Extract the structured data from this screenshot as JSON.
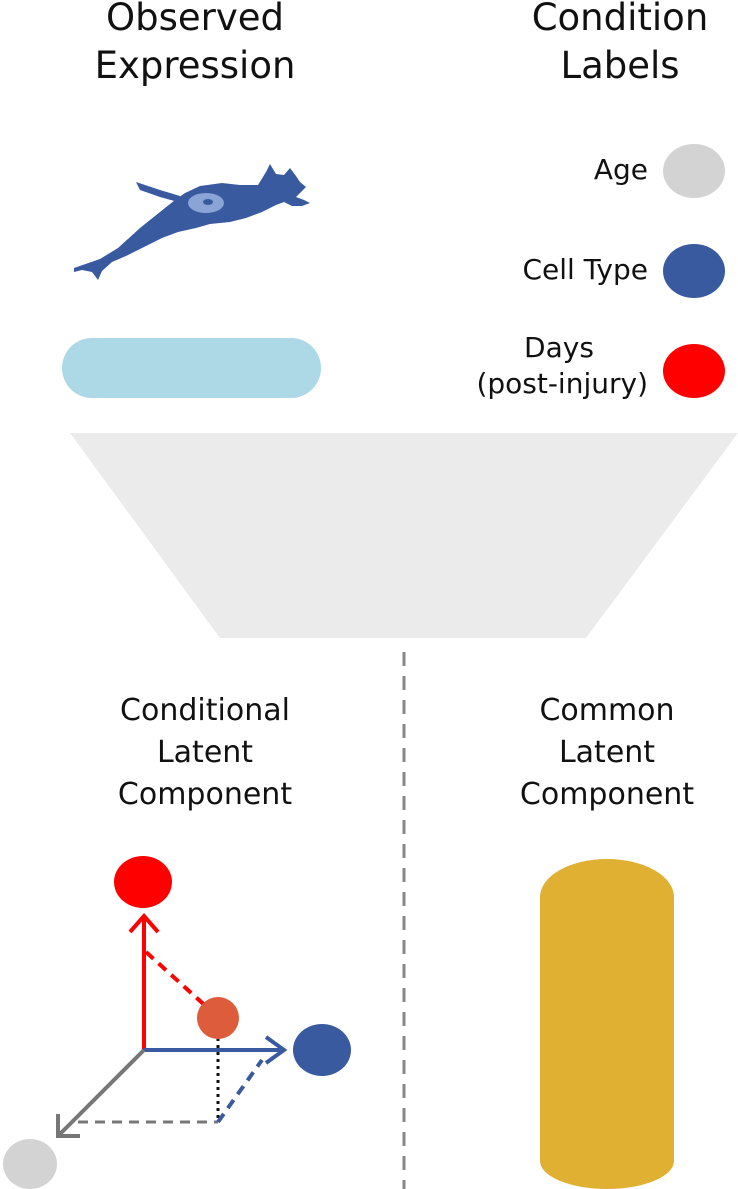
{
  "headings": {
    "observed": [
      "Observed",
      "Expression"
    ],
    "condition": [
      "Condition",
      "Labels"
    ]
  },
  "condition_labels": [
    {
      "lines": [
        "Age"
      ],
      "color": "#d3d3d3"
    },
    {
      "lines": [
        "Cell Type"
      ],
      "color": "#3a5aa0"
    },
    {
      "lines": [
        "Days",
        "(post-injury)"
      ],
      "color": "#ff0000"
    }
  ],
  "latent": {
    "conditional": [
      "Conditional",
      "Latent",
      "Component"
    ],
    "common": [
      "Common",
      "Latent",
      "Component"
    ]
  },
  "colors": {
    "expression_bar": "#add8e6",
    "funnel": "#ebebeb",
    "cell": "#3a5aa0",
    "nucleus": "#8aa4d6",
    "point": "#dd5c3c",
    "axis_gray": "#777777",
    "cylinder": "#e0b033",
    "divider": "#888888"
  }
}
